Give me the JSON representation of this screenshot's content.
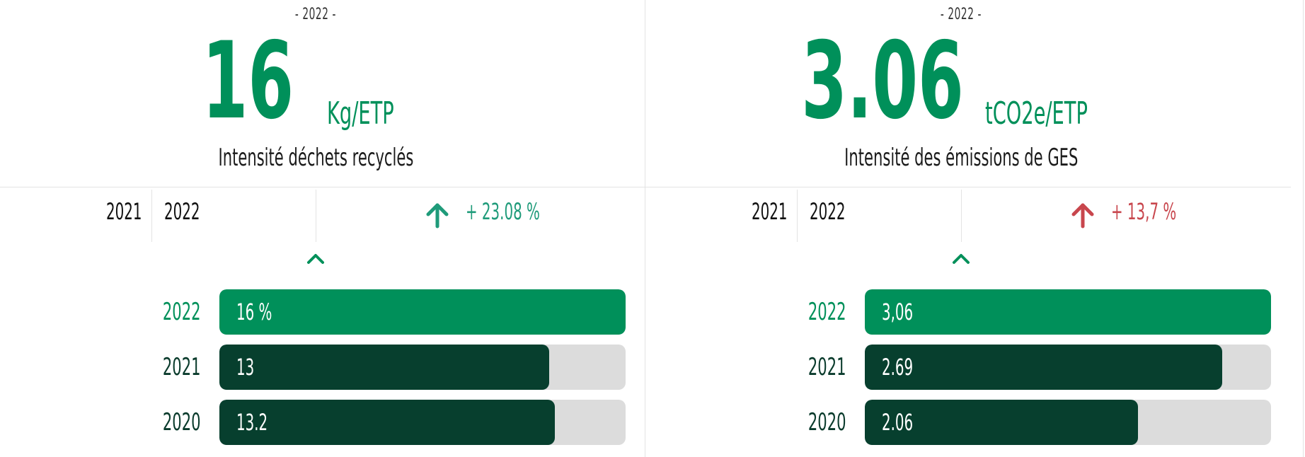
{
  "panels": [
    {
      "year_sub": "- 2022 -",
      "value": "16",
      "unit": "Kg/ETP",
      "label": "Intensité déchets recyclés",
      "compare": {
        "year_a": "2021",
        "year_b": "2022",
        "delta": "+ 23.08 %",
        "direction": "up",
        "color": "#1f9b7a"
      },
      "bars": [
        {
          "year": "2022",
          "label": "16 %",
          "value": 16,
          "current": true
        },
        {
          "year": "2021",
          "label": "13",
          "value": 13,
          "current": false
        },
        {
          "year": "2020",
          "label": "13.2",
          "value": 13.2,
          "current": false
        }
      ],
      "bar_max": 16
    },
    {
      "year_sub": "- 2022 -",
      "value": "3.06",
      "unit": "tCO2e/ETP",
      "label": "Intensité des émissions de GES",
      "compare": {
        "year_a": "2021",
        "year_b": "2022",
        "delta": "+ 13,7 %",
        "direction": "up",
        "color": "#c8464d"
      },
      "bars": [
        {
          "year": "2022",
          "label": "3,06",
          "value": 3.06,
          "current": true
        },
        {
          "year": "2021",
          "label": "2.69",
          "value": 2.69,
          "current": false
        },
        {
          "year": "2020",
          "label": "2.06",
          "value": 2.06,
          "current": false
        }
      ],
      "bar_max": 3.06
    }
  ],
  "icons": {
    "trend": "arrow-up-icon",
    "toggle": "chevron-up-icon"
  },
  "colors": {
    "accent": "#00905a",
    "dark_bar": "#073f2e",
    "track": "#dcdcdc"
  }
}
